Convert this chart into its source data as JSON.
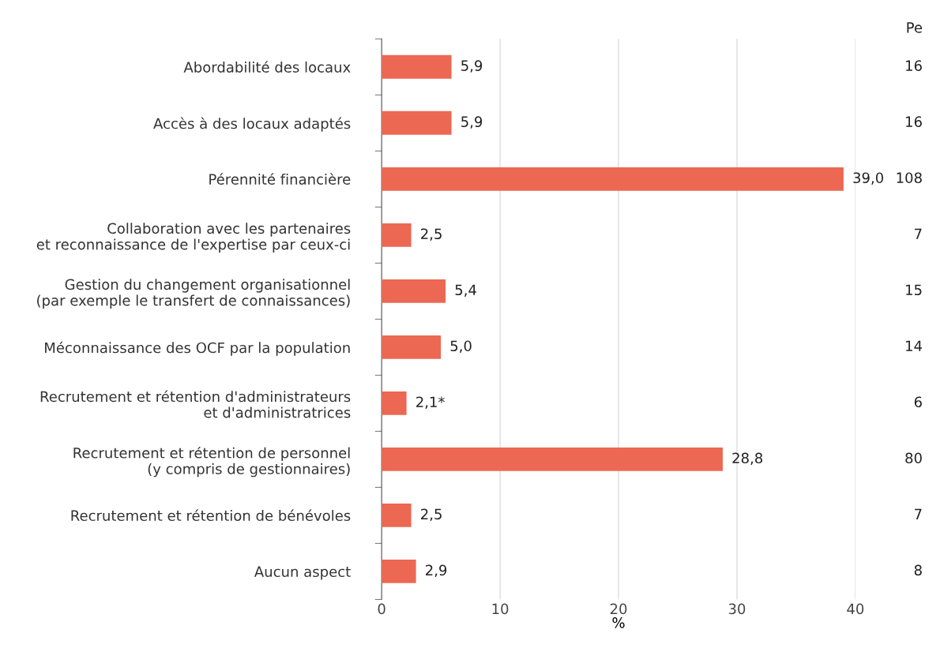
{
  "chart_data": {
    "type": "bar",
    "orientation": "horizontal",
    "categories": [
      "Abordabilité des locaux",
      "Accès à des locaux adaptés",
      "Pérennité financière",
      "Collaboration avec les partenaires\net reconnaissance de l'expertise par ceux-ci",
      "Gestion du changement organisationnel\n(par exemple le transfert de connaissances)",
      "Méconnaissance des OCF par la population",
      "Recrutement et rétention d'administrateurs\net d'administratrices",
      "Recrutement et rétention de personnel\n(y compris de gestionnaires)",
      "Recrutement et rétention de bénévoles",
      "Aucun aspect"
    ],
    "values": [
      5.9,
      5.9,
      39.0,
      2.5,
      5.4,
      5.0,
      2.1,
      28.8,
      2.5,
      2.9
    ],
    "value_labels": [
      "5,9",
      "5,9",
      "39,0",
      "2,5",
      "5,4",
      "5,0",
      "2,1*",
      "28,8",
      "2,5",
      "2,9"
    ],
    "color": "#ec6853",
    "xlim": [
      0,
      40
    ],
    "xticks": [
      0,
      10,
      20,
      30,
      40
    ],
    "xlabel": "%",
    "grid": "x",
    "annotations": [
      "Pe",
      "16",
      "16",
      "108",
      "7",
      "15",
      "14",
      "6",
      "80",
      "7",
      "8"
    ]
  }
}
